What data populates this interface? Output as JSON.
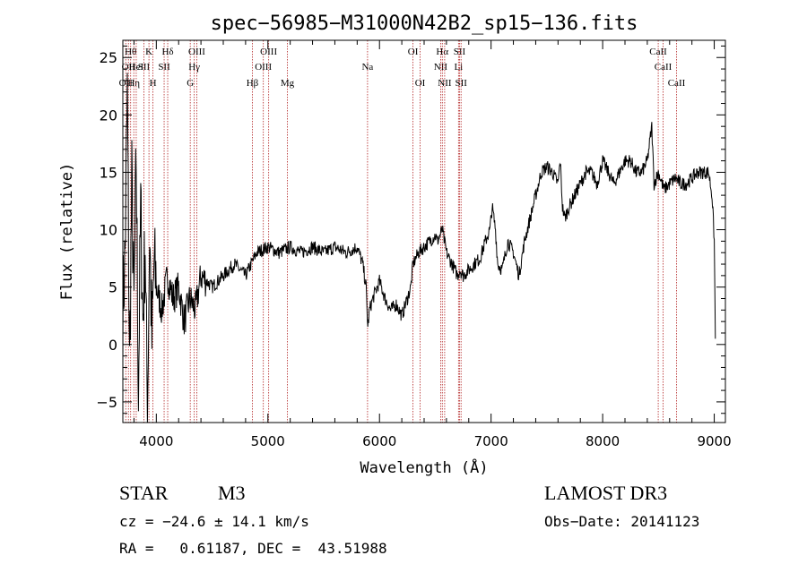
{
  "chart_data": {
    "type": "line",
    "title": "spec−56985−M31000N42B2_sp15−136.fits",
    "xlabel": "Wavelength (Å)",
    "ylabel": "Flux (relative)",
    "xlim": [
      3700,
      9100
    ],
    "ylim": [
      -6.8,
      26.5
    ],
    "x_ticks": [
      4000,
      5000,
      6000,
      7000,
      8000,
      9000
    ],
    "y_ticks": [
      -5,
      0,
      5,
      10,
      15,
      20,
      25
    ],
    "line_color": "#000000",
    "marker_color": "#b22222",
    "series": [
      {
        "name": "spectrum",
        "x": [
          3700,
          3720,
          3740,
          3760,
          3780,
          3800,
          3820,
          3840,
          3860,
          3880,
          3900,
          3920,
          3940,
          3960,
          3980,
          4000,
          4050,
          4100,
          4150,
          4200,
          4250,
          4300,
          4350,
          4400,
          4500,
          4600,
          4700,
          4800,
          4850,
          4900,
          5000,
          5100,
          5200,
          5300,
          5400,
          5500,
          5600,
          5700,
          5800,
          5850,
          5880,
          5895,
          5910,
          5940,
          6000,
          6050,
          6100,
          6150,
          6200,
          6250,
          6280,
          6300,
          6350,
          6400,
          6450,
          6500,
          6520,
          6563,
          6600,
          6650,
          6700,
          6720,
          6750,
          6800,
          6850,
          6900,
          6950,
          6990,
          7010,
          7040,
          7060,
          7100,
          7150,
          7200,
          7250,
          7300,
          7350,
          7400,
          7450,
          7500,
          7550,
          7600,
          7620,
          7640,
          7660,
          7700,
          7750,
          7800,
          7850,
          7900,
          7950,
          8000,
          8050,
          8100,
          8150,
          8200,
          8250,
          8300,
          8350,
          8400,
          8440,
          8460,
          8500,
          8550,
          8600,
          8650,
          8700,
          8750,
          8800,
          8850,
          8900,
          8950,
          8980,
          9000,
          9010
        ],
        "y": [
          3,
          8,
          22,
          -2,
          14,
          3,
          16,
          -4,
          12,
          2,
          9,
          -6,
          10,
          0,
          7,
          5,
          3,
          6,
          4,
          5,
          2,
          4,
          3,
          6,
          5,
          6,
          7,
          6,
          7,
          8,
          8.5,
          8,
          8.5,
          8,
          8.5,
          8,
          8.5,
          8,
          8.5,
          7,
          5,
          1.5,
          3,
          4,
          5.5,
          4,
          3,
          3.5,
          2.5,
          4,
          5,
          7,
          8,
          8.5,
          9,
          9.5,
          9,
          10,
          8,
          7,
          6,
          6.5,
          6,
          6.5,
          7,
          7.5,
          9,
          10,
          12,
          10,
          7,
          6.5,
          9,
          8,
          6,
          9,
          11,
          13,
          15,
          15.5,
          15,
          14,
          16,
          12,
          11,
          12,
          13,
          14,
          15,
          15,
          14,
          16,
          15,
          14,
          15,
          16,
          16,
          15,
          15,
          16,
          19,
          14,
          15,
          13.5,
          14,
          14.5,
          14,
          14,
          14.5,
          15,
          15,
          15,
          13,
          9,
          0.5
        ]
      }
    ],
    "line_markers": [
      {
        "wl": 3726,
        "label": "OII",
        "row": 2
      },
      {
        "wl": 3750,
        "label": "OII",
        "row": 1
      },
      {
        "wl": 3770,
        "label": "Hθ",
        "row": 0
      },
      {
        "wl": 3798,
        "label": "Hη",
        "row": 2
      },
      {
        "wl": 3820,
        "label": "HeI",
        "row": 1
      },
      {
        "wl": 3889,
        "label": "SII",
        "row": 1
      },
      {
        "wl": 3934,
        "label": "K",
        "row": 0
      },
      {
        "wl": 3970,
        "label": "H",
        "row": 2
      },
      {
        "wl": 4070,
        "label": "SII",
        "row": 1
      },
      {
        "wl": 4102,
        "label": "Hδ",
        "row": 0
      },
      {
        "wl": 4304,
        "label": "G",
        "row": 2
      },
      {
        "wl": 4340,
        "label": "Hγ",
        "row": 1
      },
      {
        "wl": 4363,
        "label": "OIII",
        "row": 0
      },
      {
        "wl": 4861,
        "label": "Hβ",
        "row": 2
      },
      {
        "wl": 4959,
        "label": "OIII",
        "row": 1
      },
      {
        "wl": 5007,
        "label": "OIII",
        "row": 0
      },
      {
        "wl": 5175,
        "label": "Mg",
        "row": 2
      },
      {
        "wl": 5893,
        "label": "Na",
        "row": 1
      },
      {
        "wl": 6300,
        "label": "OI",
        "row": 0
      },
      {
        "wl": 6364,
        "label": "OI",
        "row": 2
      },
      {
        "wl": 6548,
        "label": "NII",
        "row": 1
      },
      {
        "wl": 6563,
        "label": "Hα",
        "row": 0
      },
      {
        "wl": 6584,
        "label": "NII",
        "row": 2
      },
      {
        "wl": 6708,
        "label": "Li",
        "row": 1
      },
      {
        "wl": 6717,
        "label": "SII",
        "row": 0
      },
      {
        "wl": 6731,
        "label": "SII",
        "row": 2
      },
      {
        "wl": 8498,
        "label": "CaII",
        "row": 0
      },
      {
        "wl": 8542,
        "label": "CaII",
        "row": 1
      },
      {
        "wl": 8662,
        "label": "CaII",
        "row": 2
      }
    ]
  },
  "info": {
    "object_class": "STAR",
    "subclass": "M3",
    "survey": "LAMOST DR3",
    "cz": "cz = −24.6 ± 14.1 km/s",
    "obs_date": "Obs−Date: 20141123",
    "coords": "RA =   0.61187, DEC =  43.51988"
  }
}
